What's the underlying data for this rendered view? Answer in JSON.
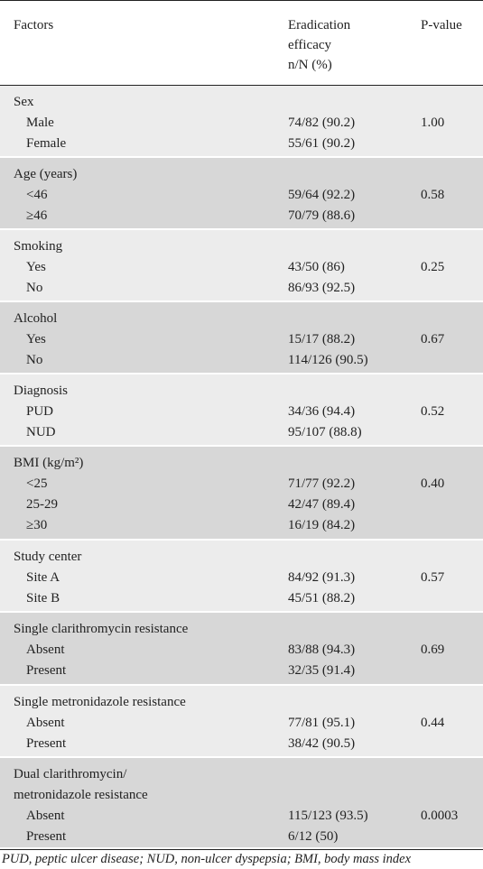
{
  "header": {
    "factors": "Factors",
    "efficacy_line1": "Eradication",
    "efficacy_line2": "efficacy",
    "efficacy_line3": "n/N (%)",
    "pvalue": "P-value"
  },
  "groups": [
    {
      "label": "Sex",
      "pvalue": "1.00",
      "rows": [
        {
          "name": "Male",
          "value": "74/82 (90.2)"
        },
        {
          "name": "Female",
          "value": "55/61 (90.2)"
        }
      ]
    },
    {
      "label": "Age (years)",
      "pvalue": "0.58",
      "rows": [
        {
          "name": "<46",
          "value": "59/64 (92.2)"
        },
        {
          "name": "≥46",
          "value": "70/79 (88.6)"
        }
      ]
    },
    {
      "label": "Smoking",
      "pvalue": "0.25",
      "rows": [
        {
          "name": "Yes",
          "value": "43/50 (86)"
        },
        {
          "name": "No",
          "value": "86/93 (92.5)"
        }
      ]
    },
    {
      "label": "Alcohol",
      "pvalue": "0.67",
      "rows": [
        {
          "name": "Yes",
          "value": "15/17 (88.2)"
        },
        {
          "name": "No",
          "value": "114/126 (90.5)"
        }
      ]
    },
    {
      "label": "Diagnosis",
      "pvalue": "0.52",
      "rows": [
        {
          "name": "PUD",
          "value": "34/36 (94.4)"
        },
        {
          "name": "NUD",
          "value": "95/107 (88.8)"
        }
      ]
    },
    {
      "label": "BMI (kg/m²)",
      "pvalue": "0.40",
      "rows": [
        {
          "name": "<25",
          "value": "71/77 (92.2)"
        },
        {
          "name": "25-29",
          "value": "42/47 (89.4)"
        },
        {
          "name": "≥30",
          "value": "16/19 (84.2)"
        }
      ]
    },
    {
      "label": "Study center",
      "pvalue": "0.57",
      "rows": [
        {
          "name": "Site A",
          "value": "84/92 (91.3)"
        },
        {
          "name": "Site B",
          "value": "45/51 (88.2)"
        }
      ]
    },
    {
      "label": "Single clarithromycin resistance",
      "pvalue": "0.69",
      "rows": [
        {
          "name": "Absent",
          "value": "83/88 (94.3)"
        },
        {
          "name": "Present",
          "value": "32/35 (91.4)"
        }
      ]
    },
    {
      "label": "Single metronidazole resistance",
      "pvalue": "0.44",
      "rows": [
        {
          "name": "Absent",
          "value": "77/81 (95.1)"
        },
        {
          "name": "Present",
          "value": "38/42 (90.5)"
        }
      ]
    },
    {
      "label": "Dual clarithromycin/",
      "label_line2": "metronidazole resistance",
      "pvalue": "0.0003",
      "rows": [
        {
          "name": "Absent",
          "value": "115/123 (93.5)"
        },
        {
          "name": "Present",
          "value": "6/12 (50)"
        }
      ]
    }
  ],
  "footer": {
    "note": "PUD, peptic ulcer disease; NUD, non-ulcer dyspepsia; BMI, body mass index"
  }
}
